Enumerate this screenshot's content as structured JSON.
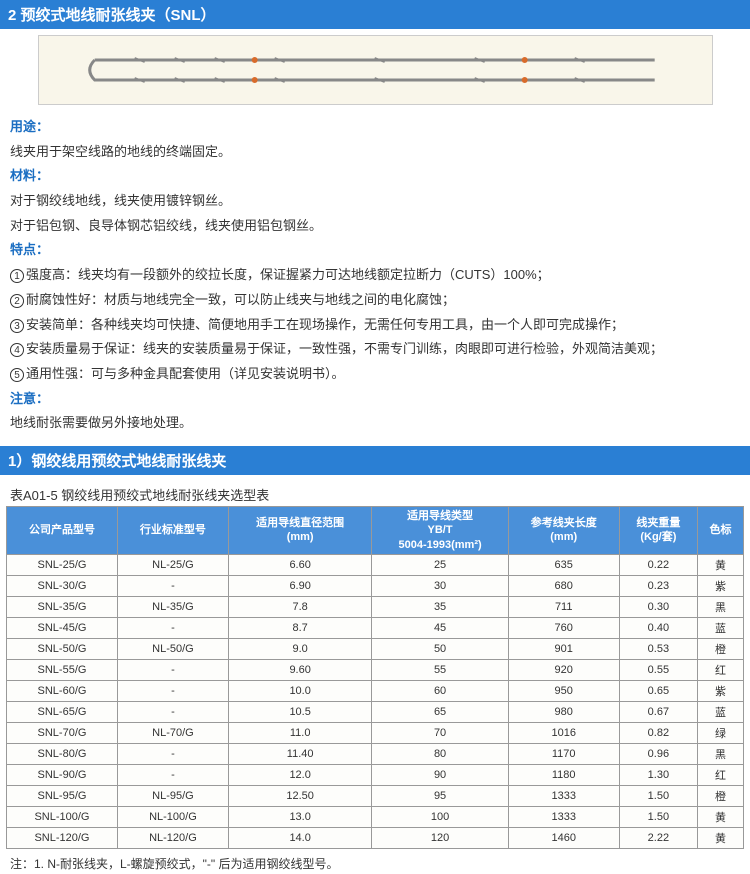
{
  "header2": "2  预绞式地线耐张线夹（SNL）",
  "sections": {
    "usage_label": "用途：",
    "usage_text": "线夹用于架空线路的地线的终端固定。",
    "material_label": "材料：",
    "material_line1": "对于钢绞线地线，线夹使用镀锌钢丝。",
    "material_line2": "对于铝包钢、良导体钢芯铝绞线，线夹使用铝包钢丝。",
    "features_label": "特点：",
    "feat1": "强度高：线夹均有一段额外的绞拉长度，保证握紧力可达地线额定拉断力（CUTS）100%；",
    "feat2": "耐腐蚀性好：材质与地线完全一致，可以防止线夹与地线之间的电化腐蚀；",
    "feat3": "安装简单：各种线夹均可快捷、简便地用手工在现场操作，无需任何专用工具，由一个人即可完成操作；",
    "feat4": "安装质量易于保证：线夹的安装质量易于保证，一致性强，不需专门训练，肉眼即可进行检验，外观简洁美观；",
    "feat5": "通用性强：可与多种金具配套使用（详见安装说明书）。",
    "notice_label": "注意：",
    "notice_text": "地线耐张需要做另外接地处理。"
  },
  "header1": "1）钢绞线用预绞式地线耐张线夹",
  "table_title": "表A01-5 钢绞线用预绞式地线耐张线夹选型表",
  "table": {
    "columns": [
      "公司产品型号",
      "行业标准型号",
      "适用导线直径范围\n(mm)",
      "适用导线类型\nYB/T\n5004-1993(mm²)",
      "参考线夹长度\n(mm)",
      "线夹重量\n(Kg/套)",
      "色标"
    ],
    "rows": [
      [
        "SNL-25/G",
        "NL-25/G",
        "6.60",
        "25",
        "635",
        "0.22",
        "黄"
      ],
      [
        "SNL-30/G",
        "-",
        "6.90",
        "30",
        "680",
        "0.23",
        "紫"
      ],
      [
        "SNL-35/G",
        "NL-35/G",
        "7.8",
        "35",
        "711",
        "0.30",
        "黑"
      ],
      [
        "SNL-45/G",
        "-",
        "8.7",
        "45",
        "760",
        "0.40",
        "蓝"
      ],
      [
        "SNL-50/G",
        "NL-50/G",
        "9.0",
        "50",
        "901",
        "0.53",
        "橙"
      ],
      [
        "SNL-55/G",
        "-",
        "9.60",
        "55",
        "920",
        "0.55",
        "红"
      ],
      [
        "SNL-60/G",
        "-",
        "10.0",
        "60",
        "950",
        "0.65",
        "紫"
      ],
      [
        "SNL-65/G",
        "-",
        "10.5",
        "65",
        "980",
        "0.67",
        "蓝"
      ],
      [
        "SNL-70/G",
        "NL-70/G",
        "11.0",
        "70",
        "1016",
        "0.82",
        "绿"
      ],
      [
        "SNL-80/G",
        "-",
        "11.40",
        "80",
        "1170",
        "0.96",
        "黑"
      ],
      [
        "SNL-90/G",
        "-",
        "12.0",
        "90",
        "1180",
        "1.30",
        "红"
      ],
      [
        "SNL-95/G",
        "NL-95/G",
        "12.50",
        "95",
        "1333",
        "1.50",
        "橙"
      ],
      [
        "SNL-100/G",
        "NL-100/G",
        "13.0",
        "100",
        "1333",
        "1.50",
        "黄"
      ],
      [
        "SNL-120/G",
        "NL-120/G",
        "14.0",
        "120",
        "1460",
        "2.22",
        "黄"
      ]
    ],
    "header_bg": "#4a90d9",
    "header_fg": "#ffffff",
    "border_color": "#999999",
    "row_bg": "#fdfdfb"
  },
  "footnote": "注：1. N-耐张线夹，L-螺旋预绞式，\"-\" 后为适用钢绞线型号。",
  "colors": {
    "section_header_bg": "#2a7fd4",
    "section_header_fg": "#ffffff",
    "label_color": "#1b6ec2",
    "body_text": "#333333",
    "page_bg": "#ffffff",
    "image_bg": "#f9f6ea"
  }
}
